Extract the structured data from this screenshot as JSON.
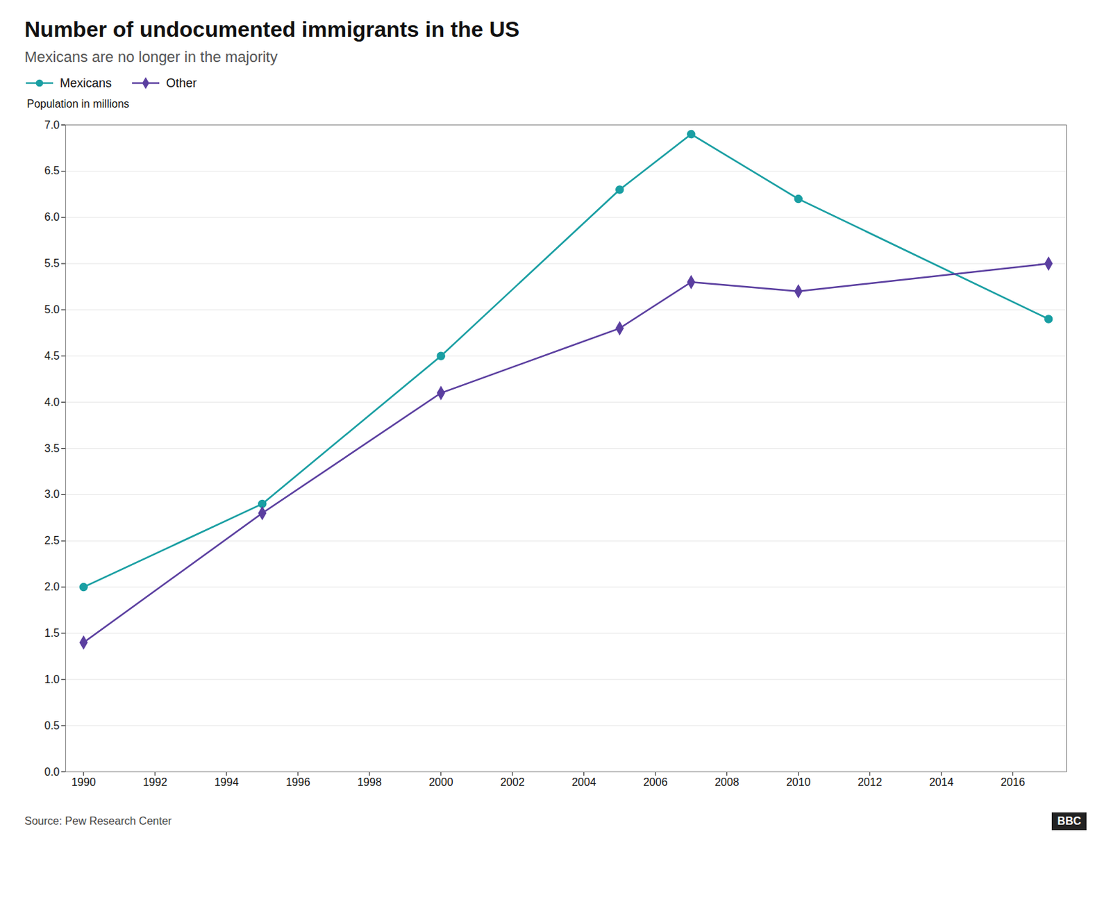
{
  "chart_data": {
    "type": "line",
    "title": "Number of undocumented immigrants in the US",
    "subtitle": "Mexicans are no longer in the majority",
    "y_label": "Population in millions",
    "source": "Source: Pew Research Center",
    "annotations": [
      "BBC"
    ],
    "x": [
      1990,
      1995,
      2000,
      2005,
      2007,
      2010,
      2017
    ],
    "series": [
      {
        "name": "Mexicans",
        "color": "#1a9fa3",
        "marker": "circle",
        "values": [
          2.0,
          2.9,
          4.5,
          6.3,
          6.9,
          6.2,
          4.9
        ]
      },
      {
        "name": "Other",
        "color": "#5b3fa0",
        "marker": "diamond",
        "values": [
          1.4,
          2.8,
          4.1,
          4.8,
          5.3,
          5.2,
          5.5
        ]
      }
    ],
    "xlim": [
      1989.5,
      2017.5
    ],
    "xticks": [
      1990,
      1992,
      1994,
      1996,
      1998,
      2000,
      2002,
      2004,
      2006,
      2008,
      2010,
      2012,
      2014,
      2016
    ],
    "ylim": [
      0.0,
      7.0
    ],
    "yticks": [
      {
        "value": 0,
        "label": "0.0"
      },
      0.5,
      {
        "value": 1,
        "label": "1.0"
      },
      1.5,
      {
        "value": 2,
        "label": "2.0"
      },
      2.5,
      {
        "value": 3,
        "label": "3.0"
      },
      3.5,
      {
        "value": 4,
        "label": "4.0"
      },
      4.5,
      {
        "value": 5,
        "label": "5.0"
      },
      5.5,
      {
        "value": 6,
        "label": "6.0"
      },
      6.5,
      {
        "value": 7,
        "label": "7.0"
      }
    ],
    "grid": "y",
    "legend": "top-left"
  }
}
